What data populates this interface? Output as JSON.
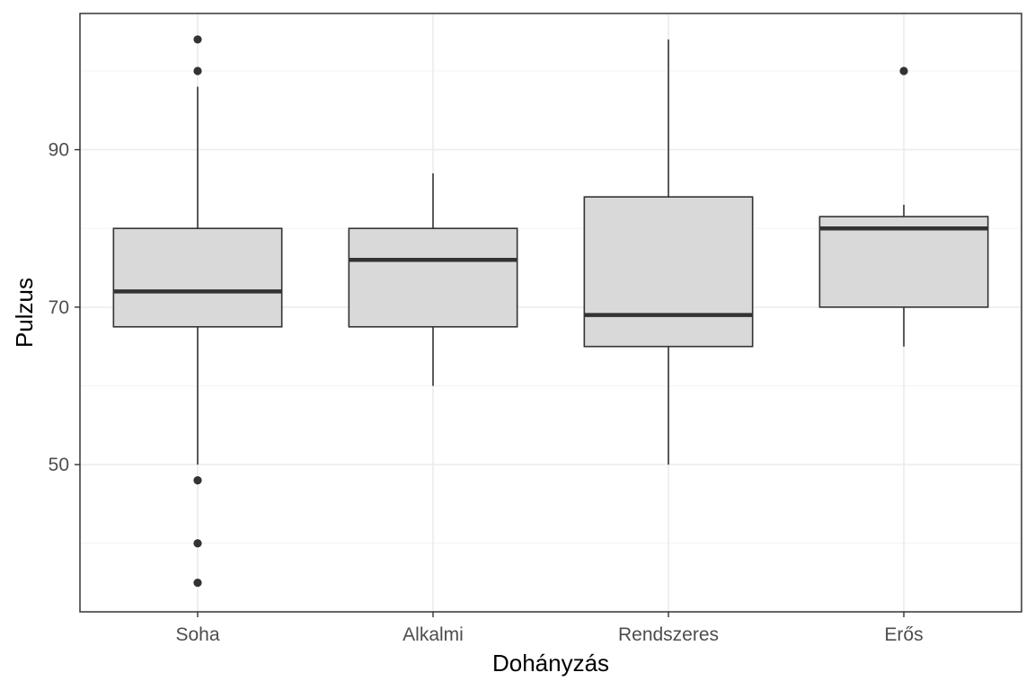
{
  "chart_data": {
    "type": "boxplot",
    "title": "",
    "xlabel": "Dohányzás",
    "ylabel": "Pulzus",
    "categories": [
      "Soha",
      "Alkalmi",
      "Rendszeres",
      "Erős"
    ],
    "boxes": [
      {
        "category": "Soha",
        "whisker_low": 50,
        "q1": 67.5,
        "median": 72,
        "q3": 80,
        "whisker_high": 98,
        "outliers": [
          104,
          100,
          48,
          40,
          35
        ]
      },
      {
        "category": "Alkalmi",
        "whisker_low": 60,
        "q1": 67.5,
        "median": 76,
        "q3": 80,
        "whisker_high": 87,
        "outliers": []
      },
      {
        "category": "Rendszeres",
        "whisker_low": 50,
        "q1": 65,
        "median": 69,
        "q3": 84,
        "whisker_high": 104,
        "outliers": []
      },
      {
        "category": "Erős",
        "whisker_low": 65,
        "q1": 70,
        "median": 80,
        "q3": 81.5,
        "whisker_high": 83,
        "outliers": [
          100
        ]
      }
    ],
    "ylim": [
      31.3,
      107.3
    ],
    "y_ticks": [
      50,
      70,
      90
    ],
    "y_minor": [
      40,
      60,
      80,
      100
    ],
    "grid": true,
    "colors": {
      "box_fill": "#d9d9d9",
      "line": "#333333",
      "grid": "#ebebeb"
    }
  }
}
